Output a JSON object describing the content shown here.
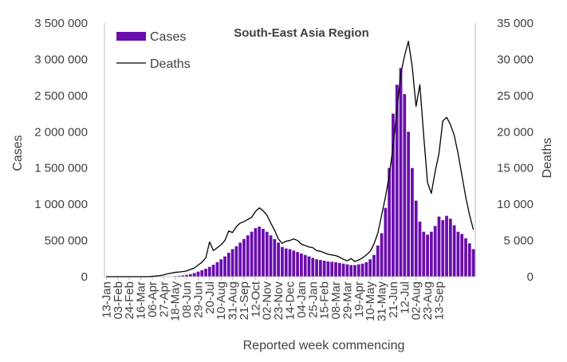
{
  "chart_data": {
    "type": "bar+line",
    "title": "South-East Asia Region",
    "xlabel": "Reported week commencing",
    "ylabel_left": "Cases",
    "ylabel_right": "Deaths",
    "ylim_left": [
      0,
      3500000
    ],
    "ylim_right": [
      0,
      35000
    ],
    "yticks_left": [
      "0",
      "500 000",
      "1 000 000",
      "1 500 000",
      "2 000 000",
      "2 500 000",
      "3 000 000",
      "3 500 000"
    ],
    "yticks_right": [
      "0",
      "5 000",
      "10 000",
      "15 000",
      "20 000",
      "25 000",
      "30 000",
      "35 000"
    ],
    "x_tick_labels": [
      "13-Jan",
      "03-Feb",
      "24-Feb",
      "16-Mar",
      "06-Apr",
      "27-Apr",
      "18-May",
      "08-Jun",
      "29-Jun",
      "20-Jul",
      "10-Aug",
      "31-Aug",
      "21-Sep",
      "12-Oct",
      "02-Nov",
      "23-Nov",
      "14-Dec",
      "04-Jan",
      "25-Jan",
      "15-Feb",
      "08-Mar",
      "29-Mar",
      "19-Apr",
      "10-May",
      "31-May",
      "21-Jun",
      "12-Jul",
      "02-Aug",
      "23-Aug",
      "13-Sep"
    ],
    "legend_position": "top-left",
    "grid": false,
    "colors": {
      "cases": "#6a0dad",
      "deaths": "#000000",
      "axis": "#bfbfbf",
      "text": "#404040"
    },
    "series": [
      {
        "name": "Cases",
        "kind": "bar",
        "axis": "left",
        "values": [
          0,
          0,
          0,
          0,
          0,
          0,
          0,
          0,
          0,
          0,
          0,
          0,
          200,
          500,
          1000,
          2000,
          3000,
          5000,
          8000,
          12000,
          18000,
          25000,
          35000,
          50000,
          70000,
          90000,
          110000,
          135000,
          165000,
          200000,
          240000,
          280000,
          330000,
          380000,
          420000,
          470000,
          520000,
          570000,
          620000,
          670000,
          690000,
          660000,
          620000,
          570000,
          520000,
          470000,
          410000,
          390000,
          380000,
          360000,
          340000,
          320000,
          300000,
          280000,
          260000,
          240000,
          230000,
          220000,
          210000,
          205000,
          200000,
          190000,
          180000,
          170000,
          160000,
          160000,
          170000,
          180000,
          200000,
          240000,
          300000,
          430000,
          600000,
          950000,
          1500000,
          2250000,
          2650000,
          2880000,
          2520000,
          2000000,
          1500000,
          1050000,
          760000,
          620000,
          580000,
          620000,
          700000,
          830000,
          780000,
          840000,
          800000,
          710000,
          620000,
          590000,
          530000,
          460000,
          380000
        ]
      },
      {
        "name": "Deaths",
        "kind": "line",
        "axis": "right",
        "values": [
          0,
          0,
          0,
          0,
          0,
          0,
          0,
          0,
          0,
          0,
          0,
          0,
          50,
          100,
          150,
          250,
          400,
          500,
          600,
          650,
          700,
          800,
          1000,
          1200,
          1600,
          2000,
          2600,
          4800,
          3600,
          4000,
          4400,
          5000,
          6300,
          6100,
          6900,
          7400,
          7600,
          7900,
          8200,
          9000,
          9500,
          9100,
          8500,
          7400,
          6400,
          5200,
          4600,
          4900,
          5000,
          5200,
          5000,
          4500,
          4300,
          4100,
          4000,
          3600,
          3500,
          3300,
          3100,
          3000,
          2900,
          2700,
          2400,
          2200,
          2500,
          2100,
          2300,
          2600,
          3000,
          3500,
          4500,
          6000,
          8500,
          11000,
          14000,
          18000,
          23000,
          28000,
          30500,
          32500,
          29000,
          23500,
          26500,
          19500,
          13000,
          11500,
          14500,
          17000,
          21500,
          22000,
          21000,
          19500,
          17000,
          14000,
          11000,
          8500,
          6500
        ]
      }
    ]
  }
}
